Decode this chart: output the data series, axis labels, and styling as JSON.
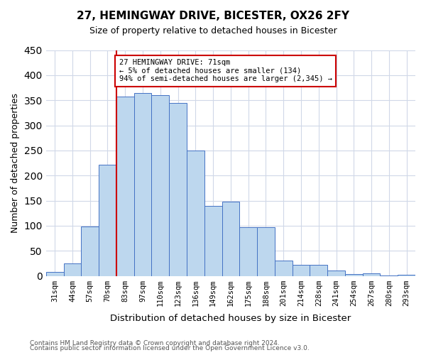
{
  "title": "27, HEMINGWAY DRIVE, BICESTER, OX26 2FY",
  "subtitle": "Size of property relative to detached houses in Bicester",
  "xlabel": "Distribution of detached houses by size in Bicester",
  "ylabel": "Number of detached properties",
  "footnote1": "Contains HM Land Registry data © Crown copyright and database right 2024.",
  "footnote2": "Contains public sector information licensed under the Open Government Licence v3.0.",
  "bin_labels": [
    "31sqm",
    "44sqm",
    "57sqm",
    "70sqm",
    "83sqm",
    "97sqm",
    "110sqm",
    "123sqm",
    "136sqm",
    "149sqm",
    "162sqm",
    "175sqm",
    "188sqm",
    "201sqm",
    "214sqm",
    "228sqm",
    "241sqm",
    "254sqm",
    "267sqm",
    "280sqm",
    "293sqm"
  ],
  "bar_heights": [
    8,
    25,
    98,
    222,
    358,
    365,
    360,
    345,
    250,
    140,
    148,
    97,
    97,
    30,
    22,
    22,
    11,
    3,
    5,
    1,
    2
  ],
  "bar_color": "#bdd7ee",
  "bar_edge_color": "#4472c4",
  "grid_color": "#d0d8e8",
  "property_bin_index": 3,
  "vline_color": "#cc0000",
  "annotation_text": "27 HEMINGWAY DRIVE: 71sqm\n← 5% of detached houses are smaller (134)\n94% of semi-detached houses are larger (2,345) →",
  "annotation_box_color": "#ffffff",
  "annotation_box_edge": "#cc0000",
  "ylim": [
    0,
    450
  ],
  "yticks": [
    0,
    50,
    100,
    150,
    200,
    250,
    300,
    350,
    400,
    450
  ]
}
